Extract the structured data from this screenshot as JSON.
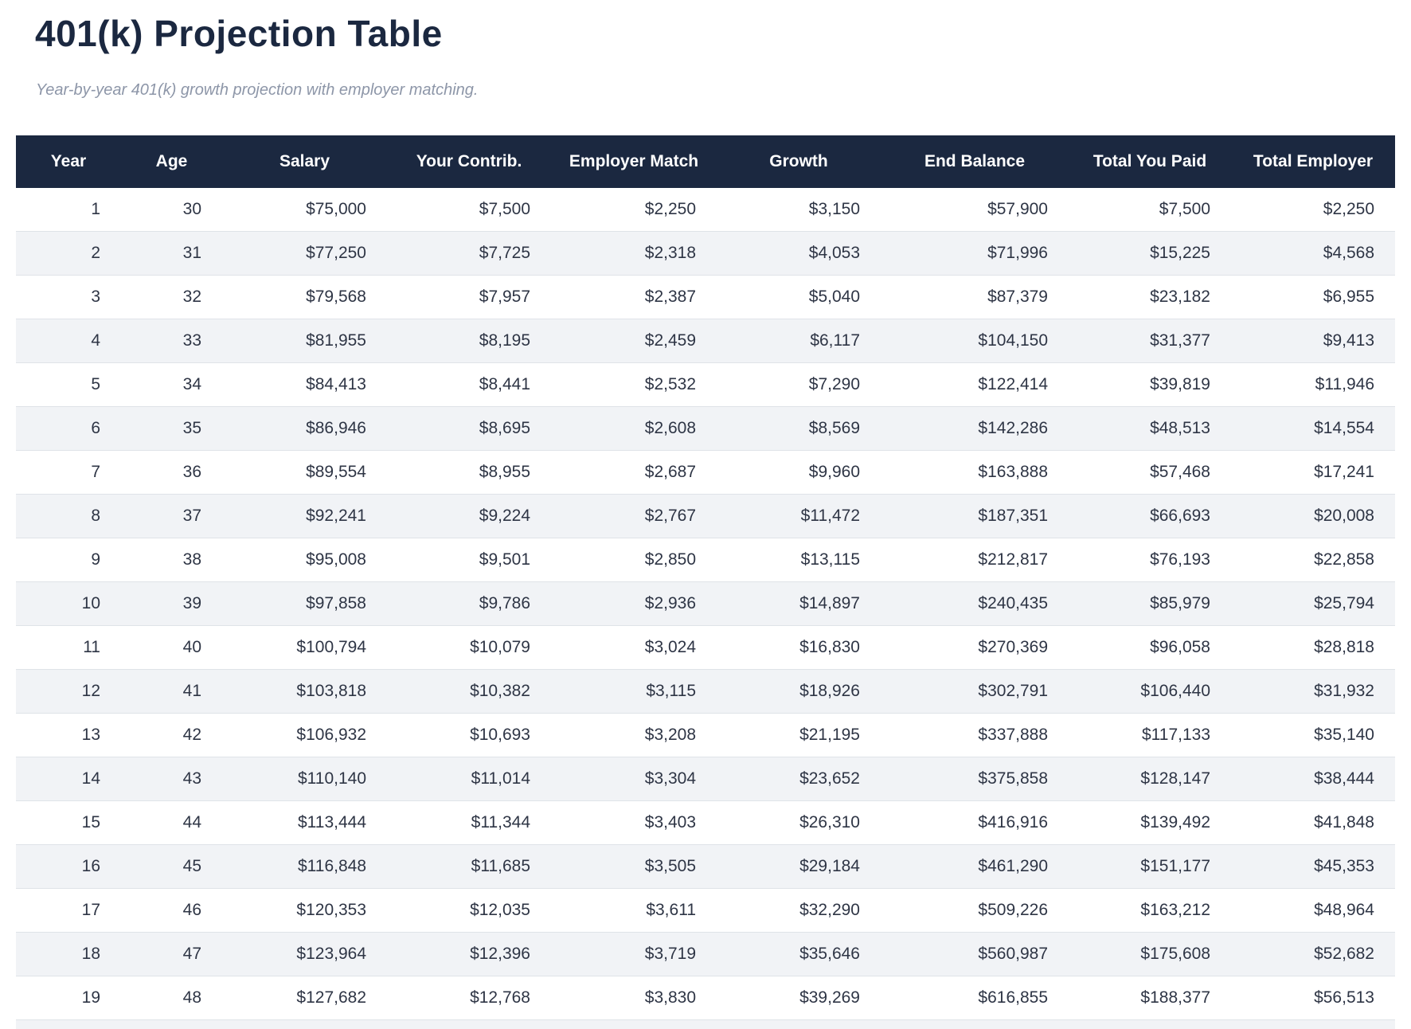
{
  "page": {
    "title": "401(k) Projection Table",
    "subtitle": "Year-by-year 401(k) growth projection with employer matching."
  },
  "colors": {
    "header_bg": "#1b2840",
    "header_text": "#ffffff",
    "title_color": "#1b2840",
    "subtitle_color": "#8d96a8",
    "body_text": "#2e3545",
    "row_alt_bg": "#f1f3f6",
    "row_border": "#dfe3e8"
  },
  "chart_data": {
    "type": "table",
    "title": "401(k) Projection Table",
    "subtitle": "Year-by-year 401(k) growth projection with employer matching.",
    "columns": [
      "Year",
      "Age",
      "Salary",
      "Your Contrib.",
      "Employer Match",
      "Growth",
      "End Balance",
      "Total You Paid",
      "Total Employer"
    ],
    "rows": [
      [
        "1",
        "30",
        "$75,000",
        "$7,500",
        "$2,250",
        "$3,150",
        "$57,900",
        "$7,500",
        "$2,250"
      ],
      [
        "2",
        "31",
        "$77,250",
        "$7,725",
        "$2,318",
        "$4,053",
        "$71,996",
        "$15,225",
        "$4,568"
      ],
      [
        "3",
        "32",
        "$79,568",
        "$7,957",
        "$2,387",
        "$5,040",
        "$87,379",
        "$23,182",
        "$6,955"
      ],
      [
        "4",
        "33",
        "$81,955",
        "$8,195",
        "$2,459",
        "$6,117",
        "$104,150",
        "$31,377",
        "$9,413"
      ],
      [
        "5",
        "34",
        "$84,413",
        "$8,441",
        "$2,532",
        "$7,290",
        "$122,414",
        "$39,819",
        "$11,946"
      ],
      [
        "6",
        "35",
        "$86,946",
        "$8,695",
        "$2,608",
        "$8,569",
        "$142,286",
        "$48,513",
        "$14,554"
      ],
      [
        "7",
        "36",
        "$89,554",
        "$8,955",
        "$2,687",
        "$9,960",
        "$163,888",
        "$57,468",
        "$17,241"
      ],
      [
        "8",
        "37",
        "$92,241",
        "$9,224",
        "$2,767",
        "$11,472",
        "$187,351",
        "$66,693",
        "$20,008"
      ],
      [
        "9",
        "38",
        "$95,008",
        "$9,501",
        "$2,850",
        "$13,115",
        "$212,817",
        "$76,193",
        "$22,858"
      ],
      [
        "10",
        "39",
        "$97,858",
        "$9,786",
        "$2,936",
        "$14,897",
        "$240,435",
        "$85,979",
        "$25,794"
      ],
      [
        "11",
        "40",
        "$100,794",
        "$10,079",
        "$3,024",
        "$16,830",
        "$270,369",
        "$96,058",
        "$28,818"
      ],
      [
        "12",
        "41",
        "$103,818",
        "$10,382",
        "$3,115",
        "$18,926",
        "$302,791",
        "$106,440",
        "$31,932"
      ],
      [
        "13",
        "42",
        "$106,932",
        "$10,693",
        "$3,208",
        "$21,195",
        "$337,888",
        "$117,133",
        "$35,140"
      ],
      [
        "14",
        "43",
        "$110,140",
        "$11,014",
        "$3,304",
        "$23,652",
        "$375,858",
        "$128,147",
        "$38,444"
      ],
      [
        "15",
        "44",
        "$113,444",
        "$11,344",
        "$3,403",
        "$26,310",
        "$416,916",
        "$139,492",
        "$41,848"
      ],
      [
        "16",
        "45",
        "$116,848",
        "$11,685",
        "$3,505",
        "$29,184",
        "$461,290",
        "$151,177",
        "$45,353"
      ],
      [
        "17",
        "46",
        "$120,353",
        "$12,035",
        "$3,611",
        "$32,290",
        "$509,226",
        "$163,212",
        "$48,964"
      ],
      [
        "18",
        "47",
        "$123,964",
        "$12,396",
        "$3,719",
        "$35,646",
        "$560,987",
        "$175,608",
        "$52,682"
      ],
      [
        "19",
        "48",
        "$127,682",
        "$12,768",
        "$3,830",
        "$39,269",
        "$616,855",
        "$188,377",
        "$56,513"
      ]
    ],
    "layout_hints": {
      "header_alignment": "center",
      "cell_alignment": "right",
      "zebra_striping": true,
      "partial_row_visible_at_bottom": true
    }
  }
}
